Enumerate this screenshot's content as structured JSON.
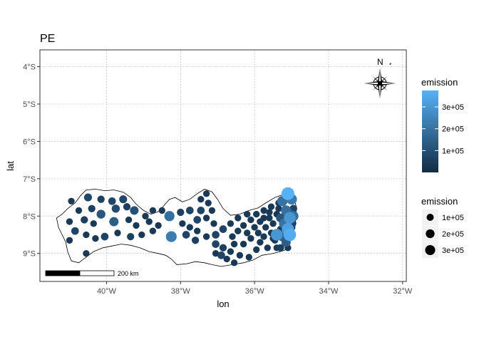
{
  "chart_data": {
    "type": "scatter",
    "title": "PE",
    "xlabel": "lon",
    "ylabel": "lat",
    "xlim": [
      -41.8,
      -31.9
    ],
    "ylim": [
      -9.75,
      -3.55
    ],
    "x_ticks": [
      -40,
      -38,
      -36,
      -34,
      -32
    ],
    "x_tick_labels": [
      "40°W",
      "38°W",
      "36°W",
      "34°W",
      "32°W"
    ],
    "y_ticks": [
      -4,
      -5,
      -6,
      -7,
      -8,
      -9
    ],
    "y_tick_labels": [
      "4°S",
      "5°S",
      "6°S",
      "7°S",
      "8°S",
      "9°S"
    ],
    "grid": true,
    "colors": {
      "low": "#132B43",
      "high": "#56B1F7",
      "panel_border": "#333333",
      "grid": "#c8c8c8"
    },
    "legend_color": {
      "title": "emission",
      "range": [
        0,
        375000
      ],
      "ticks": [
        100000,
        200000,
        300000
      ],
      "tick_labels": [
        "1e+05",
        "2e+05",
        "3e+05"
      ]
    },
    "legend_size": {
      "title": "emission",
      "values": [
        100000,
        200000,
        300000
      ],
      "labels": [
        "1e+05",
        "2e+05",
        "3e+05"
      ]
    },
    "scale_bar": {
      "label": "200 km",
      "length_km": 200
    },
    "north_arrow": {
      "label": "N"
    },
    "boundary": [
      [
        -41.35,
        -8.05
      ],
      [
        -41.2,
        -7.95
      ],
      [
        -41.05,
        -7.8
      ],
      [
        -40.85,
        -7.65
      ],
      [
        -40.7,
        -7.45
      ],
      [
        -40.55,
        -7.3
      ],
      [
        -40.3,
        -7.28
      ],
      [
        -40.05,
        -7.32
      ],
      [
        -39.8,
        -7.3
      ],
      [
        -39.55,
        -7.36
      ],
      [
        -39.35,
        -7.5
      ],
      [
        -39.2,
        -7.68
      ],
      [
        -39.0,
        -7.85
      ],
      [
        -38.8,
        -7.95
      ],
      [
        -38.6,
        -7.88
      ],
      [
        -38.45,
        -7.72
      ],
      [
        -38.3,
        -7.55
      ],
      [
        -38.15,
        -7.5
      ],
      [
        -37.95,
        -7.62
      ],
      [
        -37.75,
        -7.55
      ],
      [
        -37.55,
        -7.4
      ],
      [
        -37.35,
        -7.28
      ],
      [
        -37.15,
        -7.35
      ],
      [
        -37.0,
        -7.55
      ],
      [
        -36.85,
        -7.8
      ],
      [
        -36.65,
        -7.98
      ],
      [
        -36.4,
        -7.95
      ],
      [
        -36.15,
        -7.85
      ],
      [
        -35.9,
        -7.78
      ],
      [
        -35.7,
        -7.65
      ],
      [
        -35.45,
        -7.5
      ],
      [
        -35.3,
        -7.45
      ],
      [
        -35.12,
        -7.38
      ],
      [
        -34.95,
        -7.5
      ],
      [
        -34.87,
        -7.75
      ],
      [
        -34.88,
        -8.05
      ],
      [
        -34.93,
        -8.35
      ],
      [
        -35.02,
        -8.6
      ],
      [
        -35.1,
        -8.85
      ],
      [
        -35.2,
        -8.92
      ],
      [
        -35.5,
        -9.0
      ],
      [
        -35.8,
        -9.05
      ],
      [
        -36.05,
        -9.18
      ],
      [
        -36.3,
        -9.25
      ],
      [
        -36.6,
        -9.3
      ],
      [
        -36.9,
        -9.35
      ],
      [
        -37.15,
        -9.3
      ],
      [
        -37.35,
        -9.25
      ],
      [
        -37.6,
        -9.22
      ],
      [
        -37.85,
        -9.28
      ],
      [
        -38.1,
        -9.3
      ],
      [
        -38.25,
        -9.15
      ],
      [
        -38.4,
        -9.05
      ],
      [
        -38.6,
        -9.0
      ],
      [
        -38.85,
        -8.95
      ],
      [
        -39.1,
        -8.85
      ],
      [
        -39.35,
        -8.78
      ],
      [
        -39.6,
        -8.75
      ],
      [
        -39.85,
        -8.8
      ],
      [
        -40.1,
        -8.85
      ],
      [
        -40.35,
        -8.95
      ],
      [
        -40.55,
        -9.1
      ],
      [
        -40.75,
        -9.25
      ],
      [
        -40.95,
        -9.2
      ],
      [
        -41.05,
        -8.95
      ],
      [
        -41.1,
        -8.7
      ],
      [
        -41.2,
        -8.5
      ],
      [
        -41.3,
        -8.3
      ],
      [
        -41.35,
        -8.05
      ]
    ],
    "points": [
      {
        "lon": -40.5,
        "lat": -7.5,
        "emission": 80000
      },
      {
        "lon": -40.15,
        "lat": -7.55,
        "emission": 60000
      },
      {
        "lon": -39.85,
        "lat": -7.6,
        "emission": 70000
      },
      {
        "lon": -39.55,
        "lat": -7.55,
        "emission": 80000
      },
      {
        "lon": -40.95,
        "lat": -7.6,
        "emission": 40000
      },
      {
        "lon": -40.75,
        "lat": -7.85,
        "emission": 40000
      },
      {
        "lon": -40.4,
        "lat": -7.8,
        "emission": 60000
      },
      {
        "lon": -40.15,
        "lat": -7.95,
        "emission": 120000
      },
      {
        "lon": -39.75,
        "lat": -7.8,
        "emission": 90000
      },
      {
        "lon": -39.45,
        "lat": -7.75,
        "emission": 60000
      },
      {
        "lon": -39.25,
        "lat": -7.85,
        "emission": 110000
      },
      {
        "lon": -38.95,
        "lat": -8.0,
        "emission": 40000
      },
      {
        "lon": -38.75,
        "lat": -7.85,
        "emission": 40000
      },
      {
        "lon": -38.5,
        "lat": -7.85,
        "emission": 40000
      },
      {
        "lon": -41.0,
        "lat": -8.15,
        "emission": 40000
      },
      {
        "lon": -40.6,
        "lat": -8.1,
        "emission": 60000
      },
      {
        "lon": -40.35,
        "lat": -8.2,
        "emission": 40000
      },
      {
        "lon": -39.8,
        "lat": -8.15,
        "emission": 140000
      },
      {
        "lon": -39.4,
        "lat": -8.1,
        "emission": 40000
      },
      {
        "lon": -39.2,
        "lat": -8.25,
        "emission": 40000
      },
      {
        "lon": -38.85,
        "lat": -8.15,
        "emission": 40000
      },
      {
        "lon": -38.6,
        "lat": -8.25,
        "emission": 40000
      },
      {
        "lon": -38.3,
        "lat": -8.0,
        "emission": 190000
      },
      {
        "lon": -38.0,
        "lat": -7.9,
        "emission": 60000
      },
      {
        "lon": -37.75,
        "lat": -7.85,
        "emission": 70000
      },
      {
        "lon": -37.45,
        "lat": -7.85,
        "emission": 70000
      },
      {
        "lon": -37.25,
        "lat": -7.65,
        "emission": 40000
      },
      {
        "lon": -37.15,
        "lat": -7.85,
        "emission": 40000
      },
      {
        "lon": -37.45,
        "lat": -7.55,
        "emission": 40000
      },
      {
        "lon": -37.3,
        "lat": -7.4,
        "emission": 40000
      },
      {
        "lon": -37.95,
        "lat": -8.2,
        "emission": 40000
      },
      {
        "lon": -37.55,
        "lat": -8.1,
        "emission": 70000
      },
      {
        "lon": -37.3,
        "lat": -8.05,
        "emission": 40000
      },
      {
        "lon": -37.1,
        "lat": -8.2,
        "emission": 40000
      },
      {
        "lon": -37.75,
        "lat": -8.3,
        "emission": 40000
      },
      {
        "lon": -37.55,
        "lat": -8.4,
        "emission": 40000
      },
      {
        "lon": -38.75,
        "lat": -8.4,
        "emission": 40000
      },
      {
        "lon": -38.25,
        "lat": -8.55,
        "emission": 230000
      },
      {
        "lon": -37.85,
        "lat": -8.5,
        "emission": 70000
      },
      {
        "lon": -37.6,
        "lat": -8.65,
        "emission": 60000
      },
      {
        "lon": -37.3,
        "lat": -8.55,
        "emission": 40000
      },
      {
        "lon": -37.05,
        "lat": -8.5,
        "emission": 70000
      },
      {
        "lon": -40.85,
        "lat": -8.4,
        "emission": 70000
      },
      {
        "lon": -40.55,
        "lat": -8.5,
        "emission": 40000
      },
      {
        "lon": -40.3,
        "lat": -8.6,
        "emission": 40000
      },
      {
        "lon": -40.05,
        "lat": -8.55,
        "emission": 70000
      },
      {
        "lon": -39.7,
        "lat": -8.45,
        "emission": 40000
      },
      {
        "lon": -39.35,
        "lat": -8.55,
        "emission": 60000
      },
      {
        "lon": -39.05,
        "lat": -8.5,
        "emission": 40000
      },
      {
        "lon": -41.0,
        "lat": -8.65,
        "emission": 40000
      },
      {
        "lon": -40.55,
        "lat": -9.0,
        "emission": 40000
      },
      {
        "lon": -37.05,
        "lat": -8.75,
        "emission": 70000
      },
      {
        "lon": -36.85,
        "lat": -8.85,
        "emission": 60000
      },
      {
        "lon": -36.9,
        "lat": -9.05,
        "emission": 70000
      },
      {
        "lon": -37.05,
        "lat": -9.0,
        "emission": 40000
      },
      {
        "lon": -36.75,
        "lat": -9.15,
        "emission": 40000
      },
      {
        "lon": -36.65,
        "lat": -8.95,
        "emission": 40000
      },
      {
        "lon": -36.85,
        "lat": -8.35,
        "emission": 70000
      },
      {
        "lon": -36.6,
        "lat": -8.55,
        "emission": 40000
      },
      {
        "lon": -36.65,
        "lat": -8.2,
        "emission": 40000
      },
      {
        "lon": -36.45,
        "lat": -8.4,
        "emission": 40000
      },
      {
        "lon": -36.45,
        "lat": -8.05,
        "emission": 40000
      },
      {
        "lon": -36.3,
        "lat": -8.25,
        "emission": 40000
      },
      {
        "lon": -36.55,
        "lat": -8.75,
        "emission": 40000
      },
      {
        "lon": -36.4,
        "lat": -9.05,
        "emission": 40000
      },
      {
        "lon": -36.55,
        "lat": -9.25,
        "emission": 40000
      },
      {
        "lon": -36.15,
        "lat": -9.1,
        "emission": 40000
      },
      {
        "lon": -36.3,
        "lat": -8.75,
        "emission": 40000
      },
      {
        "lon": -36.1,
        "lat": -8.6,
        "emission": 40000
      },
      {
        "lon": -36.2,
        "lat": -8.45,
        "emission": 40000
      },
      {
        "lon": -36.0,
        "lat": -8.3,
        "emission": 40000
      },
      {
        "lon": -36.1,
        "lat": -8.1,
        "emission": 40000
      },
      {
        "lon": -36.2,
        "lat": -7.95,
        "emission": 40000
      },
      {
        "lon": -35.95,
        "lat": -7.95,
        "emission": 40000
      },
      {
        "lon": -35.85,
        "lat": -8.15,
        "emission": 40000
      },
      {
        "lon": -35.75,
        "lat": -7.85,
        "emission": 40000
      },
      {
        "lon": -35.9,
        "lat": -8.45,
        "emission": 40000
      },
      {
        "lon": -35.85,
        "lat": -8.7,
        "emission": 40000
      },
      {
        "lon": -35.95,
        "lat": -8.9,
        "emission": 40000
      },
      {
        "lon": -35.75,
        "lat": -8.55,
        "emission": 40000
      },
      {
        "lon": -35.7,
        "lat": -8.3,
        "emission": 40000
      },
      {
        "lon": -35.6,
        "lat": -8.05,
        "emission": 40000
      },
      {
        "lon": -35.55,
        "lat": -7.75,
        "emission": 40000
      },
      {
        "lon": -35.65,
        "lat": -8.85,
        "emission": 40000
      },
      {
        "lon": -35.55,
        "lat": -8.45,
        "emission": 40000
      },
      {
        "lon": -35.5,
        "lat": -8.2,
        "emission": 40000
      },
      {
        "lon": -35.4,
        "lat": -7.95,
        "emission": 40000
      },
      {
        "lon": -35.35,
        "lat": -7.65,
        "emission": 40000
      },
      {
        "lon": -35.45,
        "lat": -8.65,
        "emission": 40000
      },
      {
        "lon": -35.4,
        "lat": -8.85,
        "emission": 40000
      },
      {
        "lon": -35.3,
        "lat": -8.35,
        "emission": 40000
      },
      {
        "lon": -35.25,
        "lat": -8.1,
        "emission": 40000
      },
      {
        "lon": -35.35,
        "lat": -7.8,
        "emission": 40000
      },
      {
        "lon": -35.6,
        "lat": -7.9,
        "emission": 40000
      },
      {
        "lon": -35.75,
        "lat": -8.05,
        "emission": 40000
      },
      {
        "lon": -35.5,
        "lat": -8.6,
        "emission": 40000
      },
      {
        "lon": -35.25,
        "lat": -7.6,
        "emission": 200000
      },
      {
        "lon": -35.1,
        "lat": -7.4,
        "emission": 380000
      },
      {
        "lon": -35.0,
        "lat": -7.55,
        "emission": 220000
      },
      {
        "lon": -35.15,
        "lat": -7.85,
        "emission": 190000
      },
      {
        "lon": -34.95,
        "lat": -7.8,
        "emission": 70000
      },
      {
        "lon": -35.05,
        "lat": -8.05,
        "emission": 300000
      },
      {
        "lon": -34.95,
        "lat": -8.0,
        "emission": 190000
      },
      {
        "lon": -35.2,
        "lat": -8.2,
        "emission": 200000
      },
      {
        "lon": -34.97,
        "lat": -8.2,
        "emission": 60000
      },
      {
        "lon": -35.1,
        "lat": -8.35,
        "emission": 330000
      },
      {
        "lon": -35.05,
        "lat": -8.5,
        "emission": 360000
      },
      {
        "lon": -35.25,
        "lat": -8.55,
        "emission": 150000
      },
      {
        "lon": -35.15,
        "lat": -8.7,
        "emission": 140000
      },
      {
        "lon": -35.3,
        "lat": -8.85,
        "emission": 60000
      },
      {
        "lon": -35.1,
        "lat": -8.85,
        "emission": 40000
      },
      {
        "lon": -35.4,
        "lat": -8.5,
        "emission": 300000
      },
      {
        "lon": -35.3,
        "lat": -8.05,
        "emission": 120000
      },
      {
        "lon": -35.0,
        "lat": -7.95,
        "emission": 110000
      },
      {
        "lon": -35.0,
        "lat": -8.3,
        "emission": 70000
      },
      {
        "lon": -35.2,
        "lat": -8.0,
        "emission": 60000
      }
    ]
  }
}
